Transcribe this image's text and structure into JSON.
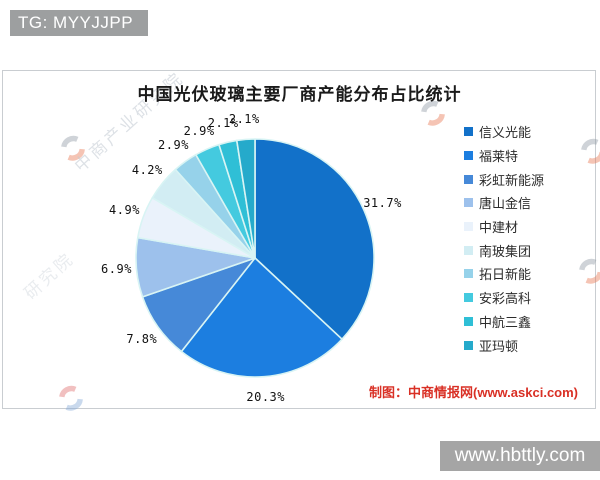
{
  "header": {
    "badge": "TG: MYYJJPP"
  },
  "footer": {
    "badge": "www.hbttly.com"
  },
  "watermark": {
    "text": "中商产业研究院",
    "text_short": "研究院"
  },
  "chart": {
    "title": "中国光伏玻璃主要厂商产能分布占比统计",
    "attribution": "制图：中商情报网(www.askci.com)"
  },
  "chart_data": {
    "type": "pie",
    "title": "中国光伏玻璃主要厂商产能分布占比统计",
    "labels": [
      "信义光能",
      "福莱特",
      "彩虹新能源",
      "唐山金信",
      "中建材",
      "南玻集团",
      "拓日新能",
      "安彩高科",
      "中航三鑫",
      "亚玛顿"
    ],
    "values": [
      31.7,
      20.3,
      7.8,
      6.9,
      4.9,
      4.2,
      2.9,
      2.9,
      2.1,
      2.1
    ],
    "pct_labels": [
      "31.7%",
      "20.3%",
      "7.8%",
      "6.9%",
      "4.9%",
      "4.2%",
      "2.9%",
      "2.9%",
      "2.1%",
      "2.1%"
    ],
    "unit": "%",
    "colors": [
      "#1271c9",
      "#1c7ee0",
      "#4689d8",
      "#9dc1ec",
      "#eaf2fb",
      "#d2edf3",
      "#96d2ea",
      "#44cadf",
      "#2fbfd6",
      "#25aacb"
    ],
    "separator_color": "#d8f4f4",
    "legend_position": "right",
    "start": "12-o-clock, clockwise"
  },
  "colors": {
    "accent_red": "#d93025",
    "badge_gray": "#9d9fa0",
    "footer_gray": "#a5a5a5",
    "frame_border": "#c9cdd1"
  }
}
